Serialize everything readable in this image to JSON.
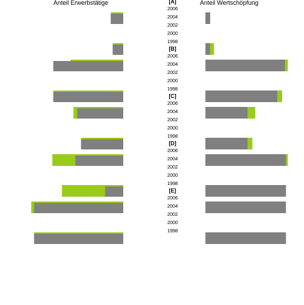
{
  "chart_data": {
    "type": "bar",
    "orientation": "butterfly-horizontal",
    "left_title": "Anteil Erwerbstätige",
    "right_title": "Anteil Wertschöpfung",
    "years": [
      "2006",
      "2004",
      "2002",
      "2000",
      "1998"
    ],
    "groups": [
      {
        "label": "[A]",
        "left": [
          {
            "year": "2006",
            "gray": 13,
            "green": 13
          },
          {
            "year": "2004",
            "gray": 0,
            "green": 0
          },
          {
            "year": "2002",
            "gray": 0,
            "green": 0
          },
          {
            "year": "2000",
            "gray": 0,
            "green": 0
          },
          {
            "year": "1998",
            "gray": 11,
            "green": 11
          }
        ],
        "right": [
          {
            "year": "2006",
            "gray": 5,
            "green": 5
          },
          {
            "year": "2004",
            "gray": 0,
            "green": 0
          },
          {
            "year": "2002",
            "gray": 0,
            "green": 0
          },
          {
            "year": "2000",
            "gray": 0,
            "green": 0
          },
          {
            "year": "1998",
            "gray": 5,
            "green": 9
          }
        ]
      },
      {
        "label": "[B]",
        "left": [
          {
            "year": "2006",
            "gray": 73,
            "green": 55
          },
          {
            "year": "2004",
            "gray": 0,
            "green": 0
          },
          {
            "year": "2002",
            "gray": 0,
            "green": 0
          },
          {
            "year": "2000",
            "gray": 0,
            "green": 0
          },
          {
            "year": "1998",
            "gray": 73,
            "green": 73
          }
        ],
        "right": [
          {
            "year": "2006",
            "gray": 83,
            "green": 86
          },
          {
            "year": "2004",
            "gray": 0,
            "green": 0
          },
          {
            "year": "2002",
            "gray": 0,
            "green": 0
          },
          {
            "year": "2000",
            "gray": 0,
            "green": 0
          },
          {
            "year": "1998",
            "gray": 75,
            "green": 80
          }
        ]
      },
      {
        "label": "[C]",
        "left": [
          {
            "year": "2006",
            "gray": 48,
            "green": 52
          },
          {
            "year": "2004",
            "gray": 0,
            "green": 0
          },
          {
            "year": "2002",
            "gray": 0,
            "green": 0
          },
          {
            "year": "2000",
            "gray": 0,
            "green": 0
          },
          {
            "year": "1998",
            "gray": 44,
            "green": 44
          }
        ],
        "right": [
          {
            "year": "2006",
            "gray": 44,
            "green": 52
          },
          {
            "year": "2004",
            "gray": 0,
            "green": 0
          },
          {
            "year": "2002",
            "gray": 0,
            "green": 0
          },
          {
            "year": "2000",
            "gray": 0,
            "green": 0
          },
          {
            "year": "1998",
            "gray": 44,
            "green": 49
          }
        ]
      },
      {
        "label": "[D]",
        "left": [
          {
            "year": "2006",
            "gray": 50,
            "green": 74
          },
          {
            "year": "2004",
            "gray": 0,
            "green": 0
          },
          {
            "year": "2002",
            "gray": 0,
            "green": 0
          },
          {
            "year": "2000",
            "gray": 0,
            "green": 0
          },
          {
            "year": "1998",
            "gray": 19,
            "green": 64
          }
        ],
        "right": [
          {
            "year": "2006",
            "gray": 84,
            "green": 86
          },
          {
            "year": "2004",
            "gray": 0,
            "green": 0
          },
          {
            "year": "2002",
            "gray": 0,
            "green": 0
          },
          {
            "year": "2000",
            "gray": 0,
            "green": 0
          },
          {
            "year": "1998",
            "gray": 84,
            "green": 84
          }
        ]
      },
      {
        "label": "[E]",
        "left": [
          {
            "year": "2006",
            "gray": 93,
            "green": 96
          },
          {
            "year": "2004",
            "gray": 0,
            "green": 0
          },
          {
            "year": "2002",
            "gray": 0,
            "green": 0
          },
          {
            "year": "2000",
            "gray": 0,
            "green": 0
          },
          {
            "year": "1998",
            "gray": 93,
            "green": 93
          }
        ],
        "right": [
          {
            "year": "2006",
            "gray": 84,
            "green": 84
          },
          {
            "year": "2004",
            "gray": 0,
            "green": 0
          },
          {
            "year": "2002",
            "gray": 0,
            "green": 0
          },
          {
            "year": "2000",
            "gray": 0,
            "green": 0
          },
          {
            "year": "1998",
            "gray": 84,
            "green": 84
          }
        ]
      }
    ],
    "colors": {
      "gray": "#808080",
      "green": "#99cc1a"
    },
    "grid": false
  }
}
